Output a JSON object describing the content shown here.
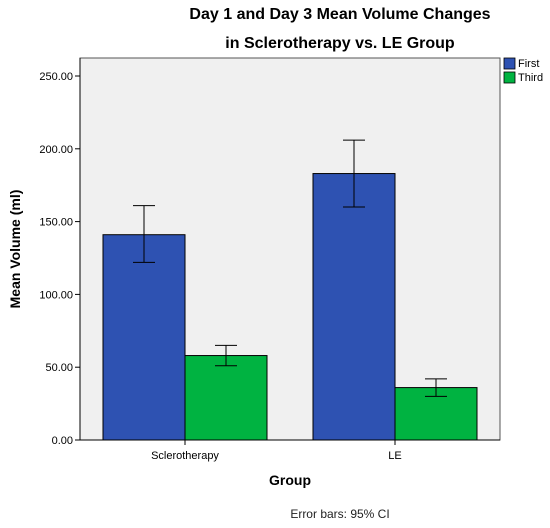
{
  "chart_data": {
    "type": "bar",
    "title_lines": [
      "Day 1 and Day 3 Mean Volume Changes",
      "in Sclerotherapy vs. LE Group"
    ],
    "xlabel": "Group",
    "ylabel": "Mean Volume (ml)",
    "categories": [
      "Sclerotherapy",
      "LE"
    ],
    "series": [
      {
        "name": "First",
        "color": "#2e52b2",
        "values": [
          141,
          183
        ],
        "ci_low": [
          122,
          160
        ],
        "ci_high": [
          161,
          206
        ]
      },
      {
        "name": "Third",
        "color": "#00b341",
        "values": [
          58,
          36
        ],
        "ci_low": [
          51,
          30
        ],
        "ci_high": [
          65,
          42
        ]
      }
    ],
    "ylim": [
      0,
      250
    ],
    "yticks": [
      "0.00",
      "50.00",
      "100.00",
      "150.00",
      "200.00",
      "250.00"
    ],
    "legend_position": "top-right",
    "grid": false,
    "footnote": "Error bars: 95% CI"
  }
}
